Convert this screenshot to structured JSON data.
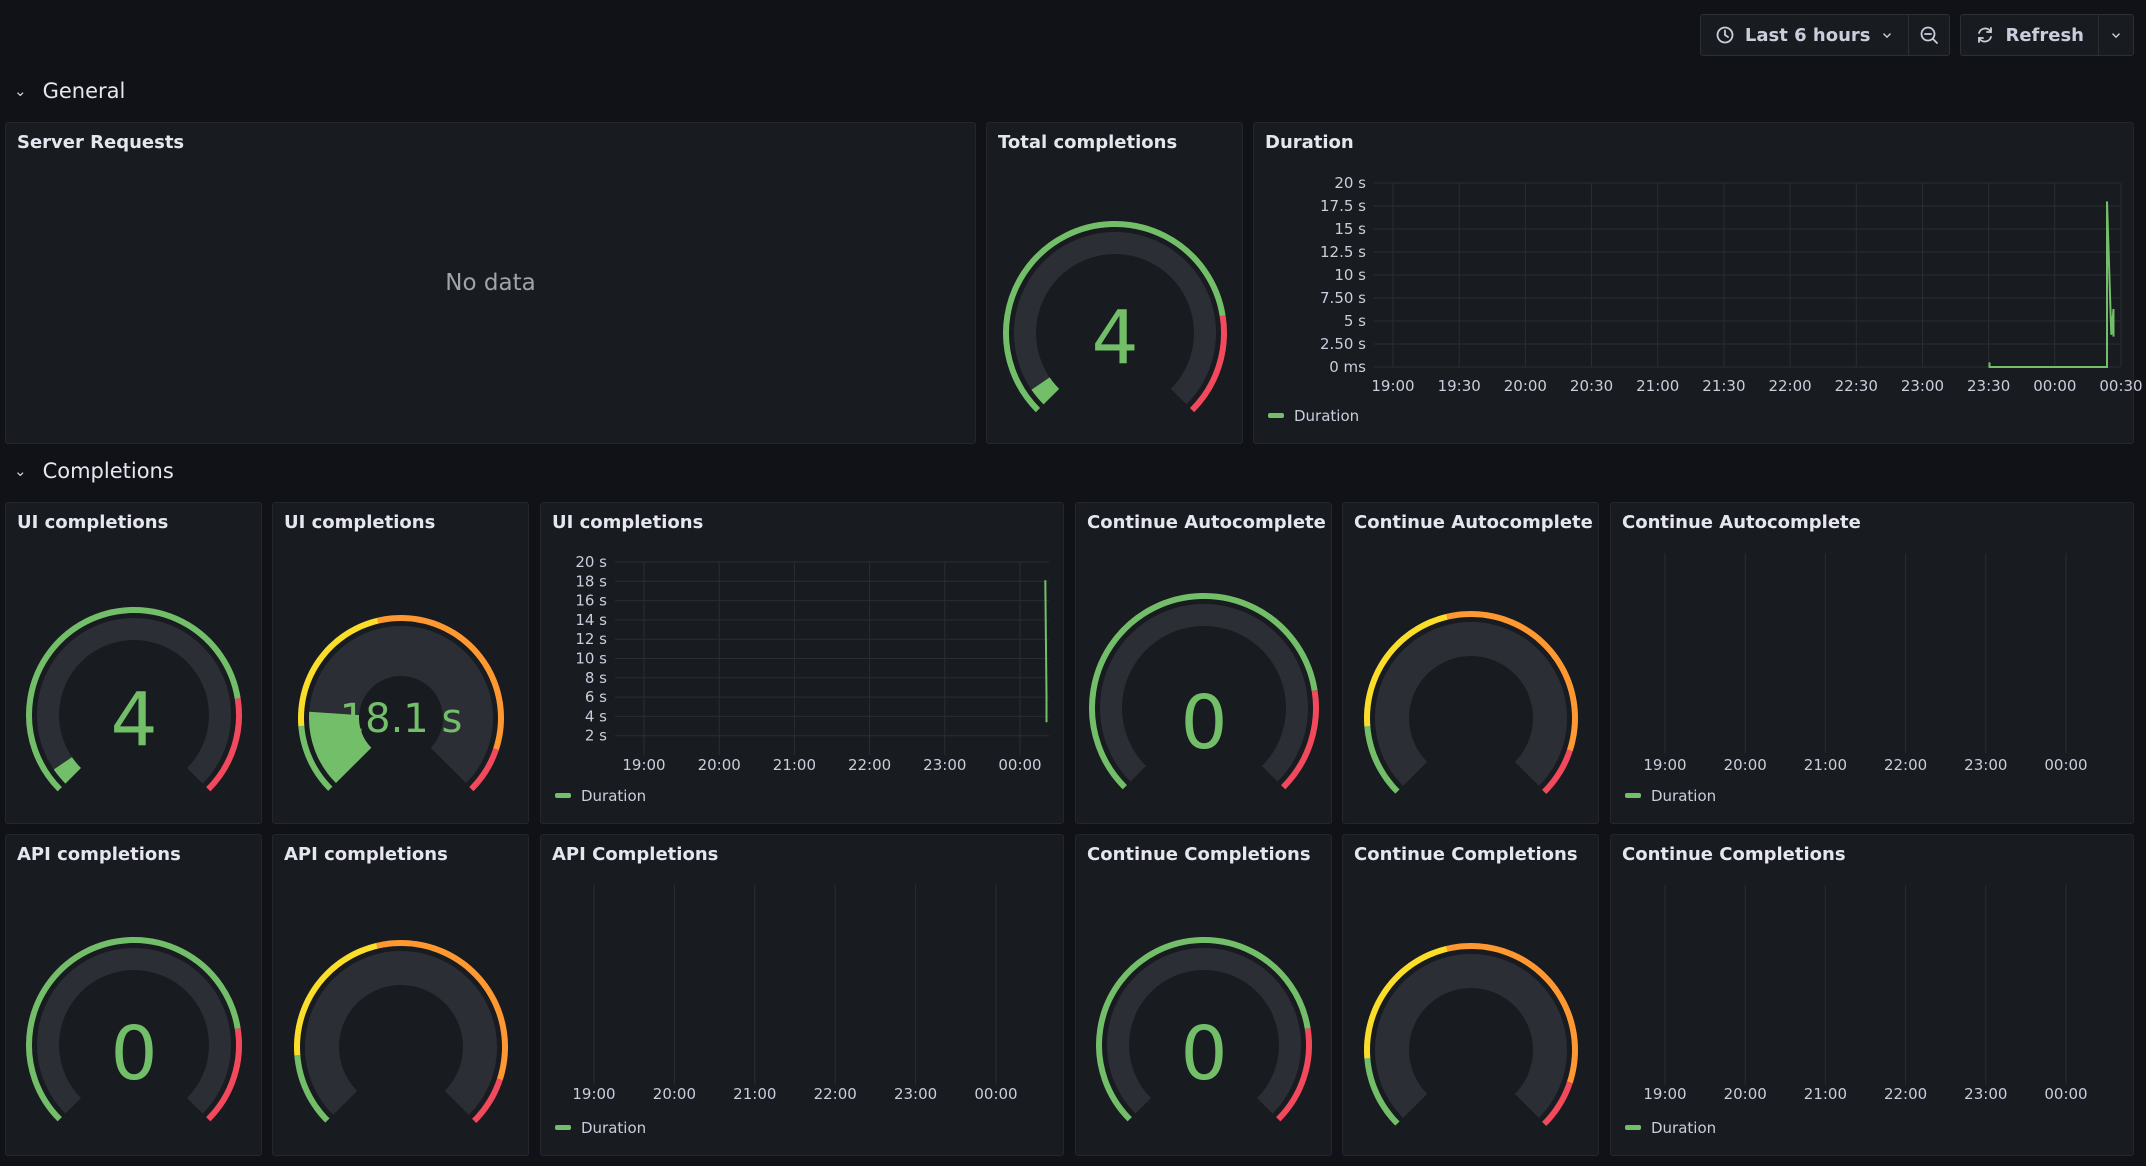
{
  "toolbar": {
    "time_range_label": "Last 6 hours",
    "refresh_label": "Refresh"
  },
  "colors": {
    "background": "#111217",
    "panel": "#181b1f",
    "green": "#73bf69",
    "yellow": "#fade2a",
    "orange": "#ff9830",
    "red": "#f2495c",
    "grid": "#2a2d33",
    "gauge_track": "#2c2e35"
  },
  "rows": [
    {
      "title": "General"
    },
    {
      "title": "Completions"
    }
  ],
  "panels": {
    "server_requests": {
      "title": "Server Requests",
      "message": "No data"
    },
    "total_completions": {
      "title": "Total completions",
      "value": "4"
    },
    "duration": {
      "title": "Duration",
      "y_ticks": [
        "20 s",
        "17.5 s",
        "15 s",
        "12.5 s",
        "10 s",
        "7.50 s",
        "5 s",
        "2.50 s",
        "0 ms"
      ],
      "x_ticks": [
        "19:00",
        "19:30",
        "20:00",
        "20:30",
        "21:00",
        "21:30",
        "22:00",
        "22:30",
        "23:00",
        "23:30",
        "00:00",
        "00:30"
      ],
      "legend": "Duration"
    },
    "ui_completions_count": {
      "title": "UI completions",
      "value": "4"
    },
    "ui_completions_duration": {
      "title": "UI completions",
      "value": "18.1 s"
    },
    "ui_completions_chart": {
      "title": "UI completions",
      "y_ticks": [
        "20 s",
        "18 s",
        "16 s",
        "14 s",
        "12 s",
        "10 s",
        "8 s",
        "6 s",
        "4 s",
        "2 s"
      ],
      "x_ticks": [
        "19:00",
        "20:00",
        "21:00",
        "22:00",
        "23:00",
        "00:00"
      ],
      "legend": "Duration"
    },
    "continue_autocomplete_count": {
      "title": "Continue Autocomplete",
      "value": "0"
    },
    "continue_autocomplete_duration": {
      "title": "Continue Autocomplete"
    },
    "continue_autocomplete_chart": {
      "title": "Continue Autocomplete",
      "x_ticks": [
        "19:00",
        "20:00",
        "21:00",
        "22:00",
        "23:00",
        "00:00"
      ],
      "legend": "Duration"
    },
    "api_completions_count": {
      "title": "API completions",
      "value": "0"
    },
    "api_completions_duration": {
      "title": "API completions"
    },
    "api_completions_chart": {
      "title": "API Completions",
      "x_ticks": [
        "19:00",
        "20:00",
        "21:00",
        "22:00",
        "23:00",
        "00:00"
      ],
      "legend": "Duration"
    },
    "continue_completions_count": {
      "title": "Continue Completions",
      "value": "0"
    },
    "continue_completions_duration": {
      "title": "Continue Completions"
    },
    "continue_completions_chart": {
      "title": "Continue Completions",
      "x_ticks": [
        "19:00",
        "20:00",
        "21:00",
        "22:00",
        "23:00",
        "00:00"
      ],
      "legend": "Duration"
    }
  },
  "chart_data": [
    {
      "type": "line",
      "title": "Duration",
      "series": [
        {
          "name": "Duration",
          "x": [
            "23:33",
            "23:33",
            "00:27",
            "00:27",
            "00:29",
            "00:29",
            "00:30",
            "00:30",
            "00:30"
          ],
          "values": [
            0.5,
            0,
            0,
            18,
            3.5,
            3.5,
            6.3,
            3.5,
            3.3
          ]
        }
      ],
      "x_range": [
        "18:50",
        "00:33"
      ],
      "ylim": [
        0,
        20
      ],
      "legend": "bottom-left"
    },
    {
      "type": "line",
      "title": "UI completions",
      "series": [
        {
          "name": "Duration",
          "x": [
            "00:35",
            "00:36",
            "00:36"
          ],
          "values": [
            18.1,
            6.2,
            3.4
          ]
        }
      ],
      "x_range": [
        "18:50",
        "00:38"
      ],
      "ylim": [
        0,
        20
      ],
      "legend": "bottom-left"
    },
    {
      "type": "gauge",
      "title": "Total completions",
      "value": 4,
      "min": 0,
      "max": 100
    },
    {
      "type": "gauge",
      "title": "UI completions",
      "value": 4,
      "min": 0,
      "max": 100
    },
    {
      "type": "gauge",
      "title": "UI completions",
      "value": 18.1,
      "unit": "s",
      "min": 0,
      "max": 100
    },
    {
      "type": "gauge",
      "title": "Continue Autocomplete",
      "value": 0,
      "min": 0,
      "max": 100
    },
    {
      "type": "gauge",
      "title": "API completions",
      "value": 0,
      "min": 0,
      "max": 100
    },
    {
      "type": "gauge",
      "title": "Continue Completions",
      "value": 0,
      "min": 0,
      "max": 100
    }
  ]
}
